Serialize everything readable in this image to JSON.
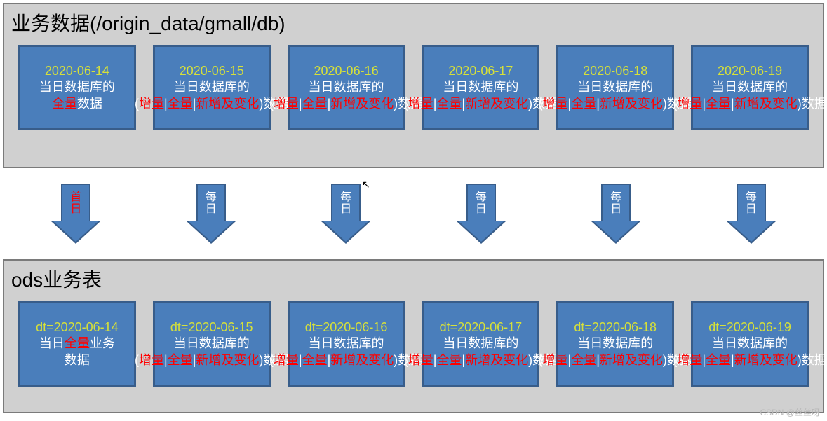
{
  "top": {
    "title": "业务数据(/origin_data/gmall/db)",
    "boxes": [
      {
        "date": "2020-06-14",
        "line1_pre": "当日数据库的",
        "full": "全量",
        "line1_post": "数据",
        "variant": "first"
      },
      {
        "date": "2020-06-15",
        "line1_pre": "当日数据库的",
        "inc": "增量",
        "full": "全量",
        "chg": "新增及变化",
        "line1_post": "数据",
        "variant": "rest"
      },
      {
        "date": "2020-06-16",
        "line1_pre": "当日数据库的",
        "inc": "增量",
        "full": "全量",
        "chg": "新增及变化",
        "line1_post": "数据",
        "variant": "rest"
      },
      {
        "date": "2020-06-17",
        "line1_pre": "当日数据库的",
        "inc": "增量",
        "full": "全量",
        "chg": "新增及变化",
        "line1_post": "数据",
        "variant": "rest"
      },
      {
        "date": "2020-06-18",
        "line1_pre": "当日数据库的",
        "inc": "增量",
        "full": "全量",
        "chg": "新增及变化",
        "line1_post": "数据",
        "variant": "rest"
      },
      {
        "date": "2020-06-19",
        "line1_pre": "当日数据库的",
        "inc": "增量",
        "full": "全量",
        "chg": "新增及变化",
        "line1_post": "数据",
        "variant": "rest"
      }
    ]
  },
  "arrows": [
    {
      "t1": "首",
      "t2": "日",
      "color": "red"
    },
    {
      "t1": "每",
      "t2": "日",
      "color": "white"
    },
    {
      "t1": "每",
      "t2": "日",
      "color": "white"
    },
    {
      "t1": "每",
      "t2": "日",
      "color": "white"
    },
    {
      "t1": "每",
      "t2": "日",
      "color": "white"
    },
    {
      "t1": "每",
      "t2": "日",
      "color": "white"
    }
  ],
  "bottom": {
    "title": "ods业务表",
    "boxes": [
      {
        "dt": "dt=2020-06-14",
        "line1_pre": "当日",
        "full": "全量",
        "line1_post": "业务",
        "tail": "数据",
        "variant": "first"
      },
      {
        "dt": "dt=2020-06-15",
        "line1_pre": "当日数据库的",
        "inc": "增量",
        "full": "全量",
        "chg": "新增及变化",
        "line1_post": "数据",
        "variant": "rest"
      },
      {
        "dt": "dt=2020-06-16",
        "line1_pre": "当日数据库的",
        "inc": "增量",
        "full": "全量",
        "chg": "新增及变化",
        "line1_post": "数据",
        "variant": "rest"
      },
      {
        "dt": "dt=2020-06-17",
        "line1_pre": "当日数据库的",
        "inc": "增量",
        "full": "全量",
        "chg": "新增及变化",
        "line1_post": "数据",
        "variant": "rest"
      },
      {
        "dt": "dt=2020-06-18",
        "line1_pre": "当日数据库的",
        "inc": "增量",
        "full": "全量",
        "chg": "新增及变化",
        "line1_post": "数据",
        "variant": "rest"
      },
      {
        "dt": "dt=2020-06-19",
        "line1_pre": "当日数据库的",
        "inc": "增量",
        "full": "全量",
        "chg": "新增及变化",
        "line1_post": "数据",
        "variant": "rest"
      }
    ]
  },
  "watermark": "CSDN @丝丝呀",
  "colors": {
    "panel_bg": "#d0d0d0",
    "panel_border": "#7a7a7a",
    "box_bg": "#4a7ebb",
    "box_border": "#385d8a",
    "date_text": "#d6e03a",
    "white_text": "#ffffff",
    "red_text": "#ff0000"
  }
}
